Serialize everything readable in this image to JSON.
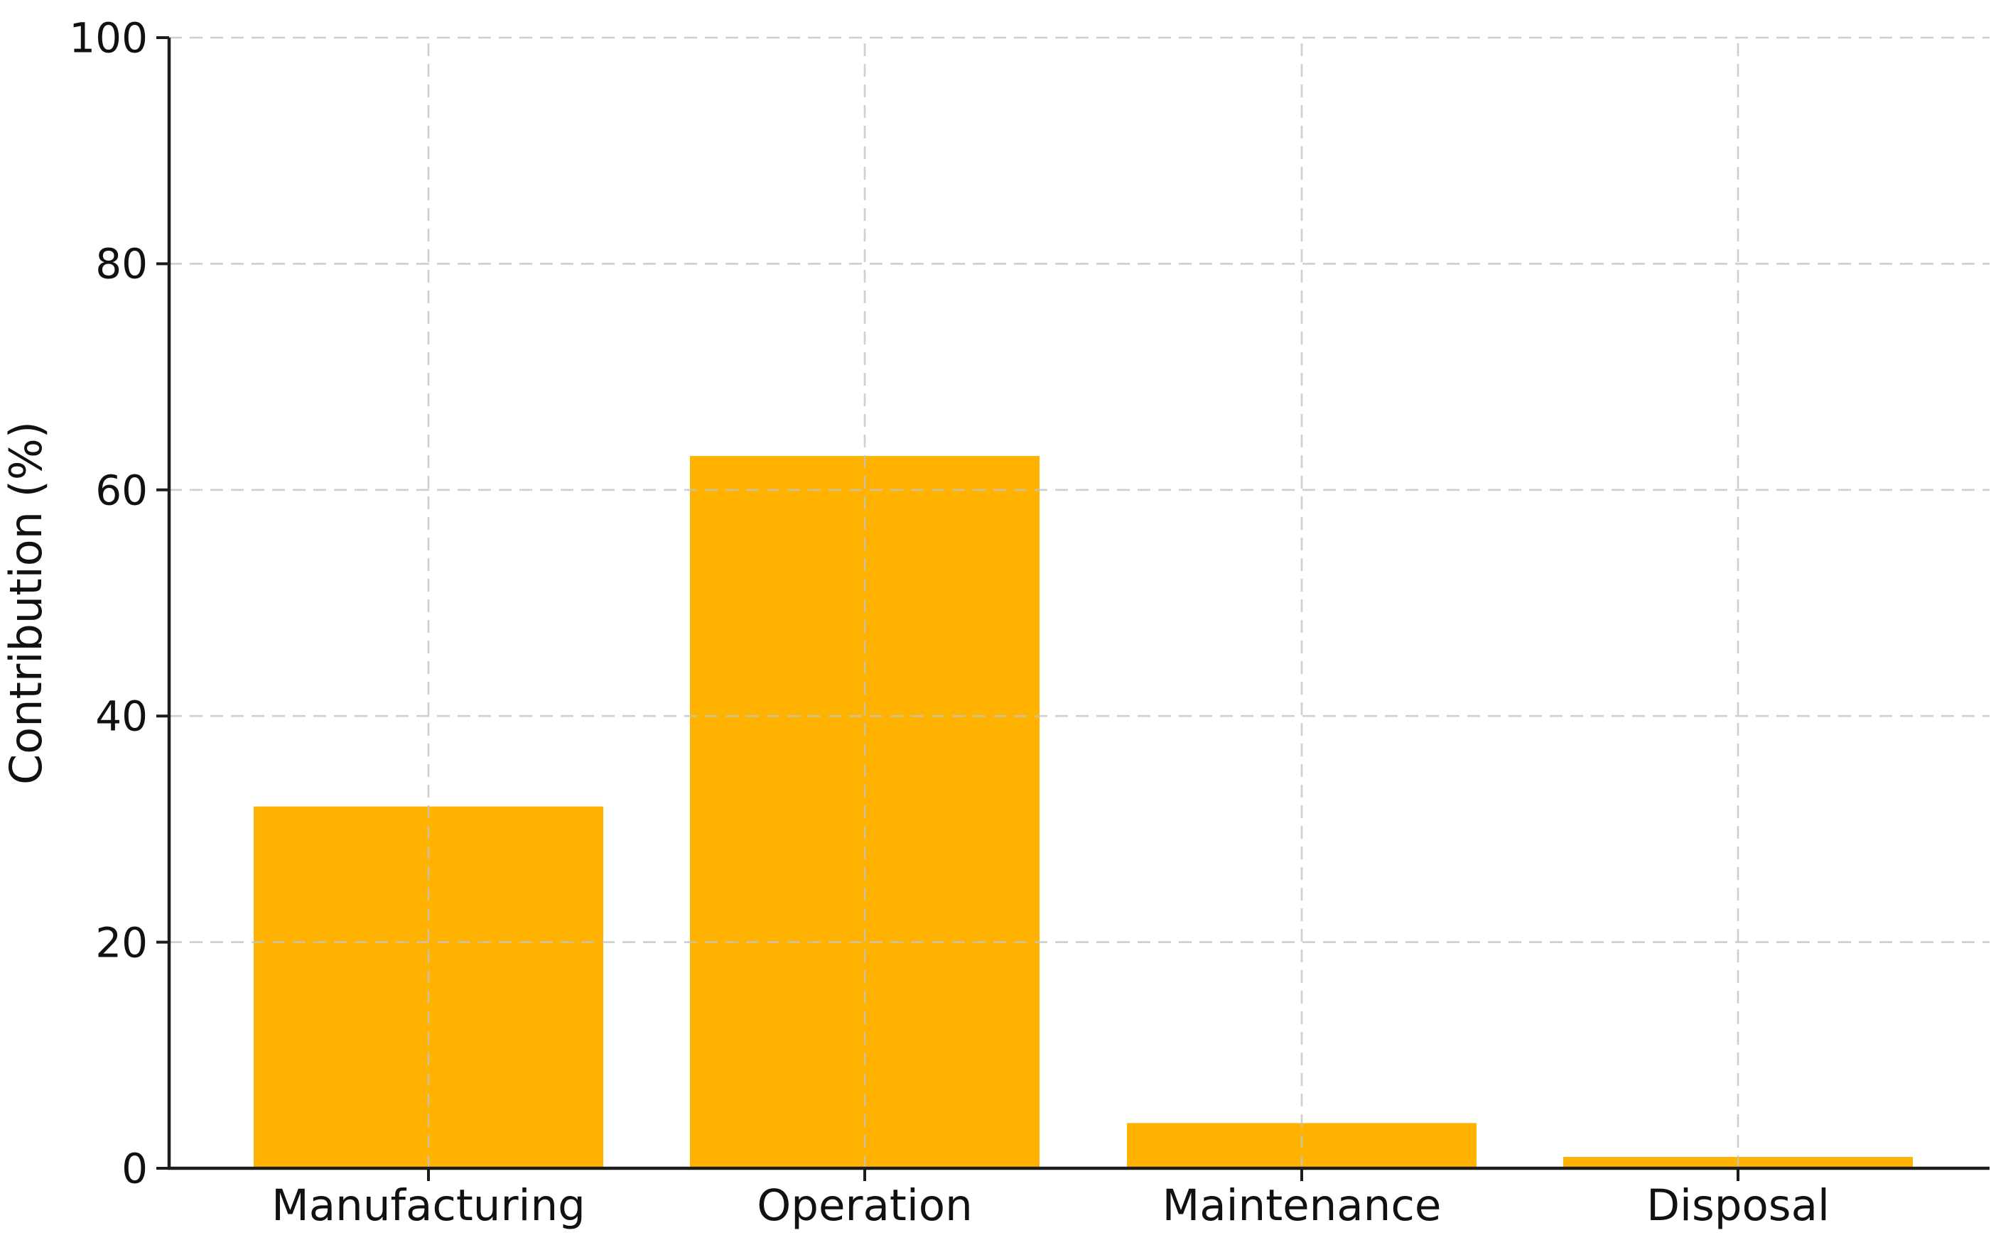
{
  "chart_data": {
    "type": "bar",
    "title": "",
    "xlabel": "",
    "ylabel": "Contribution (%)",
    "categories": [
      "Manufacturing",
      "Operation",
      "Maintenance",
      "Disposal"
    ],
    "values": [
      32,
      63,
      4,
      1
    ],
    "ylim": [
      0,
      100
    ],
    "yticks": [
      0,
      20,
      40,
      60,
      80,
      100
    ],
    "ytick_labels": [
      "0",
      "20",
      "40",
      "60",
      "80",
      "100"
    ],
    "bar_color": "#FFB300",
    "grid": "dashed",
    "grid_color": "#c4c4c4",
    "spine_color": "#1c1c1c",
    "background_color": "#ffffff",
    "legend": "none"
  }
}
